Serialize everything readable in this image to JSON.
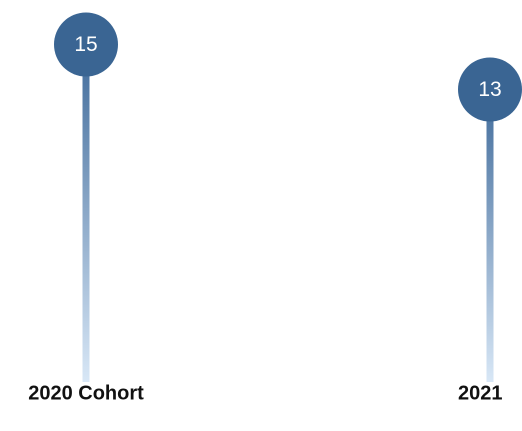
{
  "chart_data": {
    "type": "lollipop",
    "categories": [
      "2020 Cohort",
      "2021"
    ],
    "values": [
      15,
      13
    ],
    "color": "#3a6593"
  }
}
